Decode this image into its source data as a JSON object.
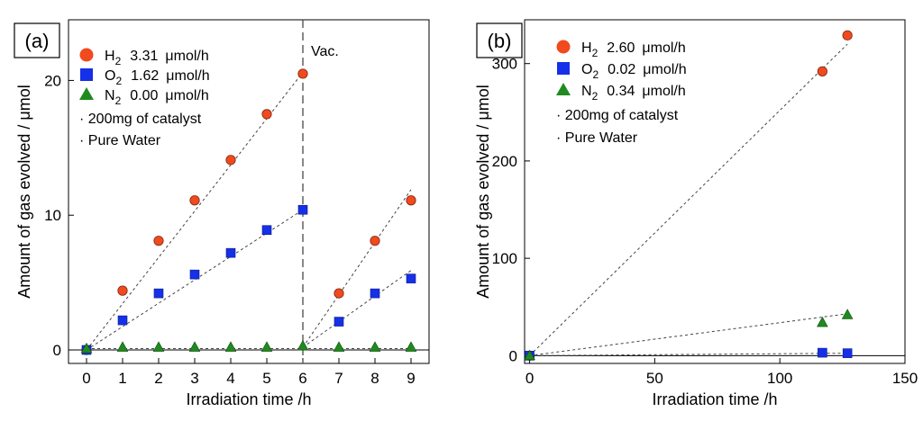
{
  "chart_data": [
    {
      "panel": "(a)",
      "type": "scatter",
      "xlabel": "Irradiation time /h",
      "ylabel": "Amount of gas evolved / μmol",
      "xlim": [
        -0.5,
        9.5
      ],
      "ylim": [
        -1,
        24.5
      ],
      "xticks": [
        0,
        1,
        2,
        3,
        4,
        5,
        6,
        7,
        8,
        9
      ],
      "yticks": [
        0,
        10,
        20
      ],
      "vline": {
        "x": 6,
        "label": "Vac."
      },
      "series": [
        {
          "name": "H",
          "sub": "2",
          "rate": "3.31",
          "unit": "μmol/h",
          "marker": "circle",
          "color": "#f04a1e",
          "x": [
            0,
            1,
            2,
            3,
            4,
            5,
            6,
            7,
            8,
            9
          ],
          "y": [
            0,
            4.4,
            8.1,
            11.1,
            14.1,
            17.5,
            20.5,
            4.2,
            8.1,
            11.1
          ],
          "fits": [
            [
              [
                0,
                0
              ],
              [
                6,
                20.6
              ]
            ],
            [
              [
                6,
                0.2
              ],
              [
                9,
                11.9
              ]
            ]
          ]
        },
        {
          "name": "O",
          "sub": "2",
          "rate": "1.62",
          "unit": "μmol/h",
          "marker": "square",
          "color": "#1530e8",
          "x": [
            0,
            1,
            2,
            3,
            4,
            5,
            6,
            7,
            8,
            9
          ],
          "y": [
            0,
            2.2,
            4.2,
            5.6,
            7.2,
            8.9,
            10.4,
            2.1,
            4.2,
            5.3
          ],
          "fits": [
            [
              [
                0,
                0
              ],
              [
                6,
                10.4
              ]
            ],
            [
              [
                6,
                0.2
              ],
              [
                9,
                5.9
              ]
            ]
          ]
        },
        {
          "name": "N",
          "sub": "2",
          "rate": "0.00",
          "unit": "μmol/h",
          "marker": "triangle",
          "color": "#1f8a1f",
          "x": [
            0,
            1,
            2,
            3,
            4,
            5,
            6,
            7,
            8,
            9
          ],
          "y": [
            0.1,
            0.2,
            0.2,
            0.2,
            0.2,
            0.2,
            0.3,
            0.2,
            0.2,
            0.2
          ],
          "fits": [
            [
              [
                0,
                0.1
              ],
              [
                9,
                0.1
              ]
            ]
          ]
        }
      ],
      "notes": [
        "· 200mg of catalyst",
        "· Pure Water"
      ]
    },
    {
      "panel": "(b)",
      "type": "scatter",
      "xlabel": "Irradiation time /h",
      "ylabel": "Amount of gas evolved / μmol",
      "xlim": [
        -2,
        150
      ],
      "ylim": [
        -8,
        345
      ],
      "xticks": [
        0,
        50,
        100,
        150
      ],
      "yticks": [
        0,
        100,
        200,
        300
      ],
      "series": [
        {
          "name": "H",
          "sub": "2",
          "rate": "2.60",
          "unit": "μmol/h",
          "marker": "circle",
          "color": "#f04a1e",
          "x": [
            0,
            117,
            127
          ],
          "y": [
            0,
            292,
            329
          ],
          "fits": [
            [
              [
                0,
                0
              ],
              [
                127,
                320
              ]
            ]
          ]
        },
        {
          "name": "O",
          "sub": "2",
          "rate": "0.02",
          "unit": "μmol/h",
          "marker": "square",
          "color": "#1530e8",
          "x": [
            0,
            117,
            127
          ],
          "y": [
            0,
            3,
            2.5
          ],
          "fits": [
            [
              [
                0,
                0
              ],
              [
                127,
                2.5
              ]
            ]
          ]
        },
        {
          "name": "N",
          "sub": "2",
          "rate": "0.34",
          "unit": "μmol/h",
          "marker": "triangle",
          "color": "#1f8a1f",
          "x": [
            0,
            117,
            127
          ],
          "y": [
            0,
            34,
            42
          ],
          "fits": [
            [
              [
                0,
                0
              ],
              [
                127,
                43
              ]
            ]
          ]
        }
      ],
      "notes": [
        "· 200mg of catalyst",
        "· Pure Water"
      ]
    }
  ]
}
